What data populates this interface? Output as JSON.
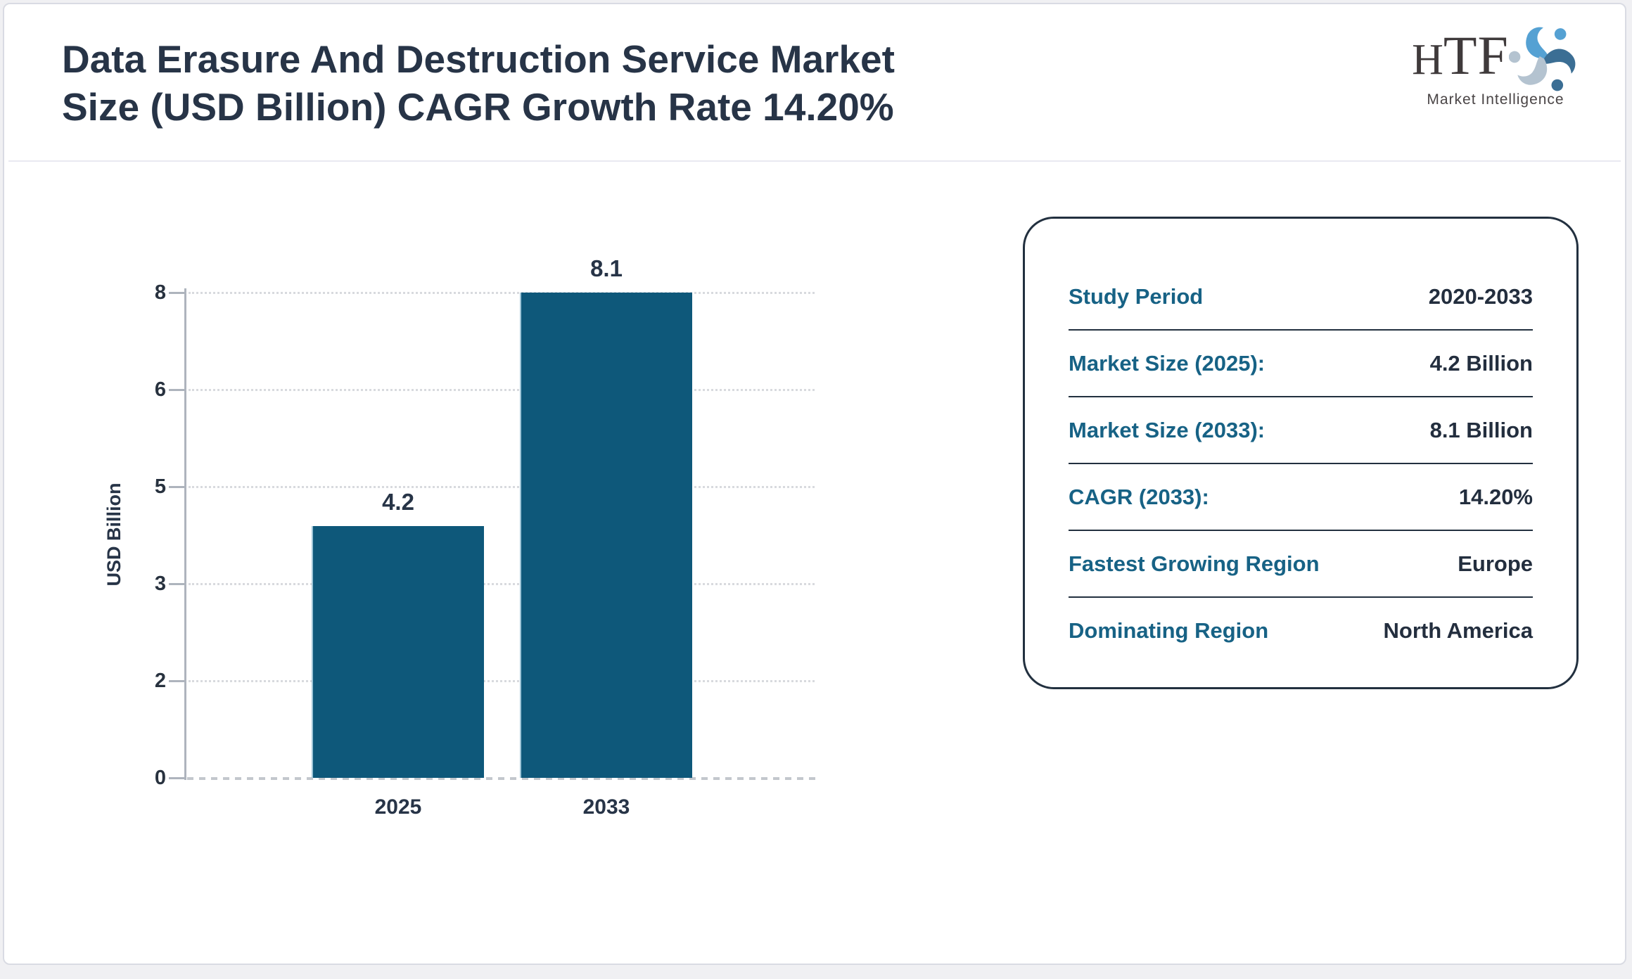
{
  "header": {
    "title_lines": [
      "Data Erasure And Destruction Service Market",
      "Size (USD Billion) CAGR Growth Rate 14.20%"
    ]
  },
  "logo": {
    "text": "HTF",
    "subtext": "Market Intelligence",
    "swirl_colors": [
      "#55a1d3",
      "#3b6e94",
      "#b4c3d0"
    ]
  },
  "chart_data": {
    "type": "bar",
    "title": "Data Erasure And Destruction Service Market Size (USD Billion) CAGR Growth Rate 14.20%",
    "categories": [
      "2025",
      "2033"
    ],
    "values": [
      4.2,
      8.1
    ],
    "bar_labels": [
      "4.2",
      "8.1"
    ],
    "xlabel": "",
    "ylabel": "USD Billion",
    "ylim": [
      0,
      8.1
    ],
    "ytick_labels": [
      "0",
      "2",
      "3",
      "5",
      "6",
      "8"
    ],
    "grid": true,
    "legend": false,
    "bar_color": "#0e587a"
  },
  "info_panel": {
    "rows": [
      {
        "label": "Study Period",
        "value": "2020-2033"
      },
      {
        "label": "Market Size (2025):",
        "value": "4.2 Billion"
      },
      {
        "label": "Market Size (2033):",
        "value": "8.1 Billion"
      },
      {
        "label": "CAGR (2033):",
        "value": "14.20%"
      },
      {
        "label": "Fastest Growing Region",
        "value": "Europe"
      },
      {
        "label": "Dominating Region",
        "value": "North America"
      }
    ]
  },
  "colors": {
    "bar": "#0e587a",
    "bar_edge": "#9ec5d7",
    "label_teal": "#176285",
    "text_navy": "#273447",
    "axis_gray": "#aeb4bd",
    "background": "#f0f0f3"
  }
}
